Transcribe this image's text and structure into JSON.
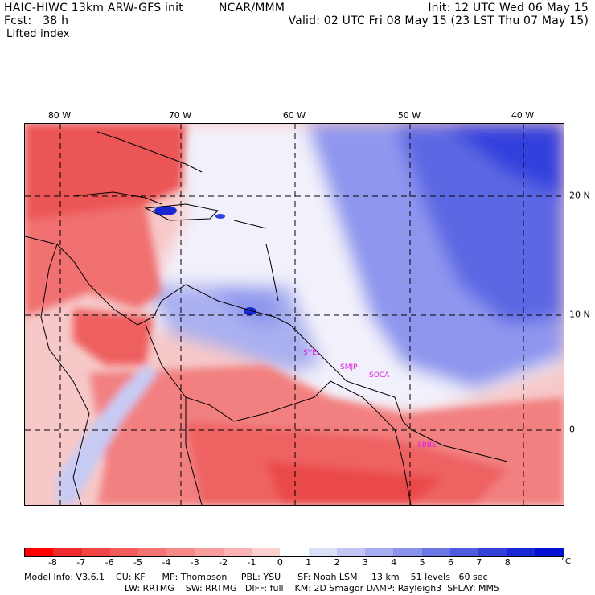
{
  "header": {
    "model": "HAIC-HIWC 13km ARW-GFS init",
    "center": "NCAR/MMM",
    "init": "Init: 12 UTC Wed 06 May 15",
    "fcst_label": "Fcst:",
    "fcst_value": "38 h",
    "valid": "Valid: 02 UTC Fri 08 May 15 (23 LST Thu 07 May 15)",
    "field": "Lifted index"
  },
  "map": {
    "lon_labels": [
      "80 W",
      "70 W",
      "60 W",
      "50 W",
      "40 W"
    ],
    "lat_labels": [
      "20 N",
      "10 N",
      "0"
    ],
    "stations": [
      "SYEL",
      "SMJP",
      "SOCA",
      "SBBE"
    ],
    "colors": {
      "very_unstable": "#e83a3a",
      "unstable": "#f48e8e",
      "neutral": "#ffffff",
      "stable": "#8e96ee",
      "very_stable": "#1a2ae6",
      "station_label": "#e01ee0"
    }
  },
  "colorbar": {
    "ticks": [
      "-8",
      "-7",
      "-6",
      "-5",
      "-4",
      "-3",
      "-2",
      "-1",
      "0",
      "1",
      "2",
      "3",
      "4",
      "5",
      "6",
      "7",
      "8"
    ],
    "unit": "°C",
    "colors": [
      "#ff0000",
      "#ee2a2a",
      "#f04646",
      "#f25c5c",
      "#f47272",
      "#f68888",
      "#f89e9e",
      "#fab4b4",
      "#fcd0d0",
      "#ffffff",
      "#dcdff8",
      "#c2c6f4",
      "#a6adef",
      "#8a93ea",
      "#6d77e4",
      "#505cdf",
      "#3441d9",
      "#1a28d3",
      "#0010cc"
    ]
  },
  "footer": {
    "line1": "Model Info: V3.6.1    CU: KF      MP: Thompson     PBL: YSU      SF: Noah LSM     13 km    51 levels   60 sec",
    "line2": "LW: RRTMG    SW: RRTMG   DIFF: full    KM: 2D Smagor DAMP: Rayleigh3  SFLAY: MM5"
  }
}
